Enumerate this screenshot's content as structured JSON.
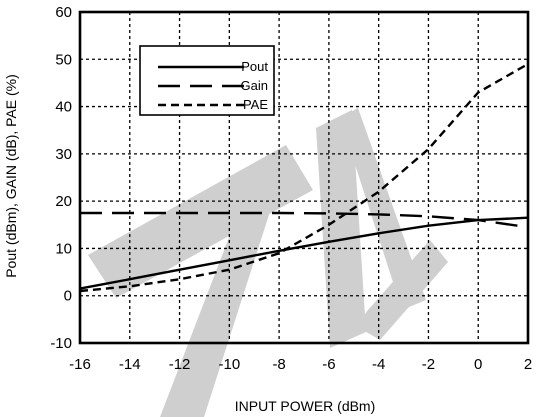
{
  "chart_data": {
    "type": "line",
    "title": "",
    "xlabel": "INPUT POWER (dBm)",
    "ylabel": "Pout (dBm), GAIN (dB), PAE (%)",
    "xlim": [
      -16,
      2
    ],
    "ylim": [
      -10,
      60
    ],
    "xticks": [
      -16,
      -14,
      -12,
      -10,
      -8,
      -6,
      -4,
      -2,
      0,
      2
    ],
    "yticks": [
      -10,
      0,
      10,
      20,
      30,
      40,
      50,
      60
    ],
    "grid": true,
    "legend_position": "top-left",
    "watermark_text": "TE",
    "series": [
      {
        "name": "Pout",
        "style": "solid",
        "x": [
          -16,
          -14,
          -12,
          -10,
          -8,
          -6,
          -4,
          -2,
          0,
          2
        ],
        "y": [
          1.5,
          3.5,
          5.5,
          7.5,
          9.5,
          11.4,
          13.2,
          14.8,
          16.0,
          16.5
        ]
      },
      {
        "name": "Gain",
        "style": "long-dash",
        "x": [
          -16,
          -14,
          -12,
          -10,
          -8,
          -6,
          -4,
          -2,
          0,
          2
        ],
        "y": [
          17.5,
          17.5,
          17.5,
          17.5,
          17.5,
          17.4,
          17.2,
          16.8,
          16.0,
          14.5
        ]
      },
      {
        "name": "PAE",
        "style": "short-dash",
        "x": [
          -16,
          -14,
          -12,
          -10,
          -8,
          -6,
          -4,
          -2,
          0,
          2
        ],
        "y": [
          1.0,
          2.0,
          3.5,
          5.5,
          9.0,
          15.0,
          22.0,
          31.0,
          43.0,
          49.0
        ]
      }
    ]
  },
  "colors": {
    "line": "#000000",
    "watermark": "#cfcfcf",
    "background": "#ffffff"
  }
}
